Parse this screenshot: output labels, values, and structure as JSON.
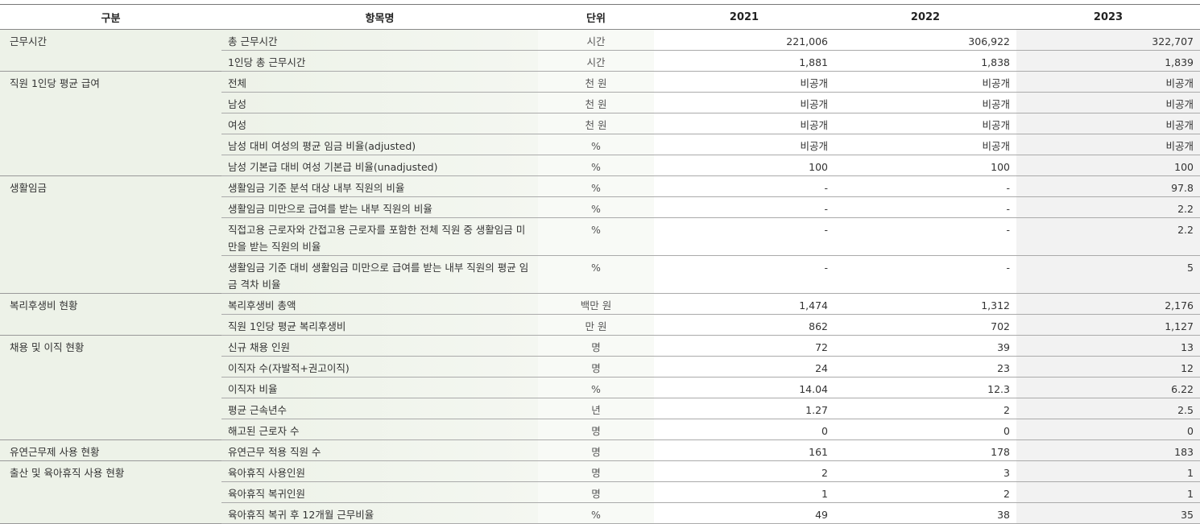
{
  "headers": [
    "구분",
    "항목명",
    "단위",
    "2021",
    "2022",
    "2023"
  ],
  "groups": [
    {
      "name": "근무시간",
      "rows": [
        {
          "item": "총 근무시간",
          "unit": "시간",
          "v": [
            "221,006",
            "306,922",
            "322,707"
          ]
        },
        {
          "item": "1인당 총 근무시간",
          "unit": "시간",
          "v": [
            "1,881",
            "1,838",
            "1,839"
          ]
        }
      ]
    },
    {
      "name": "직원 1인당 평균 급여",
      "rows": [
        {
          "item": "전체",
          "unit": "천 원",
          "v": [
            "비공개",
            "비공개",
            "비공개"
          ]
        },
        {
          "item": "남성",
          "unit": "천 원",
          "v": [
            "비공개",
            "비공개",
            "비공개"
          ]
        },
        {
          "item": "여성",
          "unit": "천 원",
          "v": [
            "비공개",
            "비공개",
            "비공개"
          ]
        },
        {
          "item": "남성 대비 여성의 평균 임금 비율(adjusted)",
          "unit": "%",
          "v": [
            "비공개",
            "비공개",
            "비공개"
          ]
        },
        {
          "item": "남성 기본급 대비 여성 기본급 비율(unadjusted)",
          "unit": "%",
          "v": [
            "100",
            "100",
            "100"
          ]
        }
      ]
    },
    {
      "name": "생활임금",
      "rows": [
        {
          "item": "생활임금 기준 분석 대상 내부 직원의 비율",
          "unit": "%",
          "v": [
            "-",
            "-",
            "97.8"
          ]
        },
        {
          "item": "생활임금 미만으로 급여를 받는 내부 직원의 비율",
          "unit": "%",
          "v": [
            "-",
            "-",
            "2.2"
          ]
        },
        {
          "item": "직접고용 근로자와 간접고용 근로자를 포함한 전체 직원 중 생활임금 미만을 받는 직원의 비율",
          "unit": "%",
          "v": [
            "-",
            "-",
            "2.2"
          ]
        },
        {
          "item": "생활임금 기준 대비 생활임금 미만으로 급여를 받는 내부 직원의 평균 임금 격차 비율",
          "unit": "%",
          "v": [
            "-",
            "-",
            "5"
          ]
        }
      ]
    },
    {
      "name": "복리후생비 현황",
      "rows": [
        {
          "item": "복리후생비 총액",
          "unit": "백만 원",
          "v": [
            "1,474",
            "1,312",
            "2,176"
          ]
        },
        {
          "item": "직원 1인당 평균 복리후생비",
          "unit": "만 원",
          "v": [
            "862",
            "702",
            "1,127"
          ]
        }
      ]
    },
    {
      "name": "채용 및 이직 현황",
      "rows": [
        {
          "item": "신규 채용 인원",
          "unit": "명",
          "v": [
            "72",
            "39",
            "13"
          ]
        },
        {
          "item": "이직자 수(자발적+권고이직)",
          "unit": "명",
          "v": [
            "24",
            "23",
            "12"
          ]
        },
        {
          "item": "이직자 비율",
          "unit": "%",
          "v": [
            "14.04",
            "12.3",
            "6.22"
          ]
        },
        {
          "item": "평균 근속년수",
          "unit": "년",
          "v": [
            "1.27",
            "2",
            "2.5"
          ]
        },
        {
          "item": "해고된 근로자 수",
          "unit": "명",
          "v": [
            "0",
            "0",
            "0"
          ]
        }
      ]
    },
    {
      "name": "유연근무제 사용 현황",
      "rows": [
        {
          "item": "유연근무 적용 직원 수",
          "unit": "명",
          "v": [
            "161",
            "178",
            "183"
          ]
        }
      ]
    },
    {
      "name": "출산 및 육아휴직 사용 현황",
      "rows": [
        {
          "item": "육아휴직 사용인원",
          "unit": "명",
          "v": [
            "2",
            "3",
            "1"
          ]
        },
        {
          "item": "육아휴직 복귀인원",
          "unit": "명",
          "v": [
            "1",
            "2",
            "1"
          ]
        },
        {
          "item": "육아휴직 복귀 후 12개월 근무비율",
          "unit": "%",
          "v": [
            "49",
            "38",
            "35"
          ]
        }
      ]
    }
  ]
}
